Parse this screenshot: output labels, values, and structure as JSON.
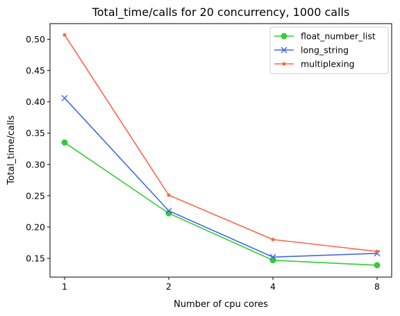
{
  "chart_data": {
    "type": "line",
    "title": "Total_time/calls for 20 concurrency, 1000 calls",
    "xlabel": "Number of cpu cores",
    "ylabel": "Total_time/calls",
    "categories": [
      "1",
      "2",
      "4",
      "8"
    ],
    "ylim": [
      0.12,
      0.525
    ],
    "yticks": [
      0.15,
      0.2,
      0.25,
      0.3,
      0.35,
      0.4,
      0.45,
      0.5
    ],
    "ytick_labels": [
      "0.15",
      "0.20",
      "0.25",
      "0.30",
      "0.35",
      "0.40",
      "0.45",
      "0.50"
    ],
    "grid": false,
    "legend_position": "top-right",
    "series": [
      {
        "name": "float_number_list",
        "color": "#32cd32",
        "marker": "circle",
        "values": [
          0.335,
          0.222,
          0.147,
          0.139
        ]
      },
      {
        "name": "long_string",
        "color": "#4169e1",
        "marker": "x",
        "values": [
          0.406,
          0.226,
          0.152,
          0.158
        ]
      },
      {
        "name": "multiplexing",
        "color": "#ff6347",
        "marker": "dot",
        "values": [
          0.507,
          0.251,
          0.18,
          0.161
        ]
      }
    ]
  }
}
